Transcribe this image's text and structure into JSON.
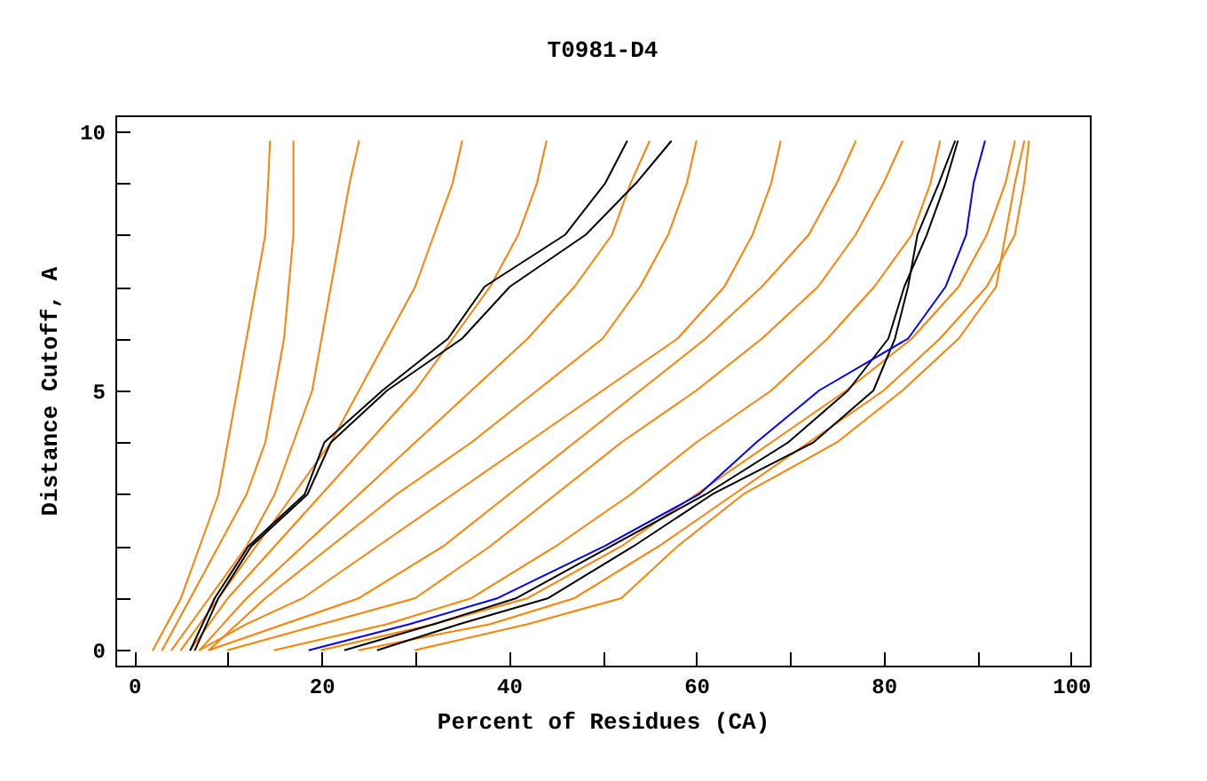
{
  "chart_data": {
    "type": "line",
    "title": "T0981-D4",
    "xlabel": "Percent of Residues (CA)",
    "ylabel": "Distance Cutoff, A",
    "xlim": [
      -2,
      102
    ],
    "ylim": [
      -0.3,
      10.3
    ],
    "xticks": [
      0,
      {
        "value": 10,
        "label": null
      },
      20,
      {
        "value": 30,
        "label": null
      },
      40,
      {
        "value": 50,
        "label": null
      },
      60,
      {
        "value": 70,
        "label": null
      },
      80,
      {
        "value": 90,
        "label": null
      },
      100
    ],
    "yticks": [
      0,
      {
        "value": 1,
        "label": null
      },
      {
        "value": 2,
        "label": null
      },
      {
        "value": 3,
        "label": null
      },
      {
        "value": 4,
        "label": null
      },
      5,
      {
        "value": 6,
        "label": null
      },
      {
        "value": 7,
        "label": null
      },
      {
        "value": 8,
        "label": null
      },
      {
        "value": 9,
        "label": null
      },
      10
    ],
    "grid": false,
    "legend": false,
    "marker": "none",
    "line_style": "solid",
    "series": [
      {
        "color": "#ff8000",
        "x": [
          2,
          5,
          7,
          9,
          10,
          11,
          12,
          13,
          14,
          14.3,
          14.5
        ],
        "values": [
          0,
          1,
          2,
          3,
          4,
          5,
          6,
          7,
          8,
          9,
          9.8
        ]
      },
      {
        "color": "#ff8000",
        "x": [
          3,
          6,
          9,
          12,
          14,
          15,
          16,
          16.5,
          17,
          17,
          17
        ],
        "values": [
          0,
          1,
          2,
          3,
          4,
          5,
          6,
          7,
          8,
          9,
          9.8
        ]
      },
      {
        "color": "#ff8000",
        "x": [
          4,
          8,
          12,
          15,
          17,
          19,
          20,
          21,
          22,
          23,
          24
        ],
        "values": [
          0,
          1,
          2,
          3,
          4,
          5,
          6,
          7,
          8,
          9,
          9.8
        ]
      },
      {
        "color": "#ff8000",
        "x": [
          5,
          9,
          13,
          17,
          21,
          24,
          27,
          30,
          32,
          34,
          35
        ],
        "values": [
          0,
          1,
          2,
          3,
          4,
          5,
          6,
          7,
          8,
          9,
          9.8
        ]
      },
      {
        "color": "#ff8000",
        "x": [
          6,
          10,
          15,
          20,
          25,
          30,
          34,
          38,
          41,
          43,
          44
        ],
        "values": [
          0,
          1,
          2,
          3,
          4,
          5,
          6,
          7,
          8,
          9,
          9.8
        ]
      },
      {
        "color": "#ff8000",
        "x": [
          7,
          12,
          18,
          24,
          30,
          36,
          42,
          47,
          51,
          53,
          55
        ],
        "values": [
          0,
          1,
          2,
          3,
          4,
          5,
          6,
          7,
          8,
          9,
          9.8
        ]
      },
      {
        "color": "#ff8000",
        "x": [
          8,
          14,
          21,
          28,
          36,
          43,
          50,
          54,
          57,
          59,
          60
        ],
        "values": [
          0,
          1,
          2,
          3,
          4,
          5,
          6,
          7,
          8,
          9,
          9.8
        ]
      },
      {
        "color": "#ff8000",
        "x": [
          24,
          38,
          47,
          56,
          64,
          72,
          80,
          86,
          91,
          94,
          95,
          95.5
        ],
        "values": [
          0,
          0.5,
          1,
          2,
          3,
          4,
          5,
          6,
          7,
          8,
          9,
          9.8
        ]
      },
      {
        "color": "#ff8000",
        "x": [
          20,
          32,
          42,
          52,
          60,
          68,
          76,
          83,
          88,
          91,
          93,
          94
        ],
        "values": [
          0,
          0.5,
          1,
          2,
          3,
          4,
          5,
          6,
          7,
          8,
          9,
          9.8
        ]
      },
      {
        "color": "#ff8000",
        "x": [
          15,
          27,
          36,
          45,
          53,
          60,
          68,
          74,
          79,
          83,
          85,
          86
        ],
        "values": [
          0,
          0.5,
          1,
          2,
          3,
          4,
          5,
          6,
          7,
          8,
          9,
          9.8
        ]
      },
      {
        "color": "#ff8000",
        "x": [
          10,
          20,
          30,
          38,
          45,
          52,
          60,
          67,
          73,
          77,
          80,
          82
        ],
        "values": [
          0,
          0.5,
          1,
          2,
          3,
          4,
          5,
          6,
          7,
          8,
          9,
          9.8
        ]
      },
      {
        "color": "#ff8000",
        "x": [
          8,
          16,
          24,
          33,
          40,
          47,
          54,
          61,
          67,
          72,
          75,
          77
        ],
        "values": [
          0,
          0.5,
          1,
          2,
          3,
          4,
          5,
          6,
          7,
          8,
          9,
          9.8
        ]
      },
      {
        "color": "#ff8000",
        "x": [
          7,
          12,
          18,
          26,
          34,
          42,
          50,
          58,
          63,
          66,
          68,
          69
        ],
        "values": [
          0,
          0.5,
          1,
          2,
          3,
          4,
          5,
          6,
          7,
          8,
          9,
          9.8
        ]
      },
      {
        "color": "#ff8000",
        "x": [
          30,
          42,
          52,
          58,
          65,
          75,
          82,
          88,
          92,
          93,
          94,
          95
        ],
        "values": [
          0,
          0.5,
          1,
          2,
          3,
          4,
          5,
          6,
          7,
          8,
          9,
          9.8
        ]
      },
      {
        "color": "#000000",
        "x": [
          6.0,
          8.6,
          12.2,
          18.2,
          20.3,
          26.5,
          33.5,
          37.4,
          46.0,
          50.3,
          52.6
        ],
        "values": [
          0,
          1,
          2,
          3,
          4,
          5,
          6,
          7,
          8,
          9,
          9.8
        ]
      },
      {
        "color": "#000000",
        "x": [
          6.5,
          9,
          12.5,
          18.5,
          21,
          27,
          35,
          40.1,
          48.2,
          53.6,
          57.3
        ],
        "values": [
          0,
          1,
          2,
          3,
          4,
          5,
          6,
          7,
          8,
          9,
          9.8
        ]
      },
      {
        "color": "#000000",
        "x": [
          26.0,
          34.7,
          44.2,
          53.3,
          61.7,
          72.5,
          78.9,
          81.2,
          82.6,
          83.6,
          85.9,
          87.6
        ],
        "values": [
          0,
          0.5,
          1,
          2,
          3,
          4,
          5,
          6,
          7,
          8,
          9,
          9.8
        ]
      },
      {
        "color": "#000000",
        "x": [
          22.5,
          32.0,
          40.8,
          50.9,
          61.0,
          69.8,
          76.2,
          80.5,
          82.2,
          84.6,
          86.6,
          87.9
        ],
        "values": [
          0,
          0.5,
          1,
          2,
          3,
          4,
          5,
          6,
          7,
          8,
          9,
          9.8
        ]
      },
      {
        "color": "#0000ff",
        "x": [
          18.7,
          29.4,
          38.8,
          50.2,
          60.3,
          66.4,
          73.1,
          82.6,
          86.6,
          88.8,
          89.6,
          90.8
        ],
        "values": [
          0,
          0.5,
          1,
          2,
          3,
          4,
          5,
          6,
          7,
          8,
          9,
          9.8
        ]
      }
    ]
  }
}
